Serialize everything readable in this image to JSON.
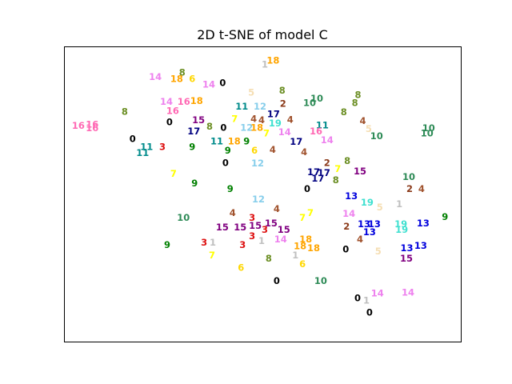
{
  "chart_data": {
    "type": "scatter",
    "title": "2D t-SNE of model C",
    "xlabel": "",
    "ylabel": "",
    "xlim": [
      0,
      1
    ],
    "ylim": [
      0,
      1
    ],
    "axis_ticks": "none",
    "grid": false,
    "legend": "none",
    "marker_style": "class label text",
    "label_colors": {
      "0": "#000000",
      "1": "#c0c0c0",
      "2": "#8b3a1a",
      "3": "#dd1111",
      "4": "#a0522d",
      "5": "#f5deb3",
      "6": "#ffd700",
      "7": "#ffff00",
      "8": "#6b8e23",
      "9": "#008000",
      "10": "#2e8b57",
      "11": "#008b8b",
      "12": "#87ceeb",
      "13": "#0000dd",
      "14": "#ee82ee",
      "15": "#800080",
      "16": "#ff69b4",
      "17": "#000080",
      "18": "#ffa500",
      "19": "#40e0d0"
    },
    "points": [
      {
        "label": "18",
        "x": 0.527,
        "y": 0.951
      },
      {
        "label": "1",
        "x": 0.506,
        "y": 0.938
      },
      {
        "label": "8",
        "x": 0.298,
        "y": 0.911
      },
      {
        "label": "14",
        "x": 0.23,
        "y": 0.895
      },
      {
        "label": "18",
        "x": 0.284,
        "y": 0.889
      },
      {
        "label": "6",
        "x": 0.323,
        "y": 0.889
      },
      {
        "label": "14",
        "x": 0.365,
        "y": 0.87
      },
      {
        "label": "0",
        "x": 0.4,
        "y": 0.876
      },
      {
        "label": "5",
        "x": 0.472,
        "y": 0.843
      },
      {
        "label": "8",
        "x": 0.55,
        "y": 0.849
      },
      {
        "label": "8",
        "x": 0.741,
        "y": 0.835
      },
      {
        "label": "10",
        "x": 0.637,
        "y": 0.822
      },
      {
        "label": "10",
        "x": 0.619,
        "y": 0.808
      },
      {
        "label": "14",
        "x": 0.258,
        "y": 0.811
      },
      {
        "label": "16",
        "x": 0.302,
        "y": 0.811
      },
      {
        "label": "18",
        "x": 0.334,
        "y": 0.814
      },
      {
        "label": "8",
        "x": 0.733,
        "y": 0.808
      },
      {
        "label": "2",
        "x": 0.552,
        "y": 0.805
      },
      {
        "label": "11",
        "x": 0.448,
        "y": 0.795
      },
      {
        "label": "12",
        "x": 0.494,
        "y": 0.795
      },
      {
        "label": "16",
        "x": 0.274,
        "y": 0.781
      },
      {
        "label": "8",
        "x": 0.705,
        "y": 0.776
      },
      {
        "label": "8",
        "x": 0.153,
        "y": 0.778
      },
      {
        "label": "17",
        "x": 0.528,
        "y": 0.77
      },
      {
        "label": "15",
        "x": 0.339,
        "y": 0.749
      },
      {
        "label": "4",
        "x": 0.478,
        "y": 0.754
      },
      {
        "label": "4",
        "x": 0.498,
        "y": 0.749
      },
      {
        "label": "7",
        "x": 0.43,
        "y": 0.754
      },
      {
        "label": "4",
        "x": 0.57,
        "y": 0.751
      },
      {
        "label": "4",
        "x": 0.753,
        "y": 0.746
      },
      {
        "label": "0",
        "x": 0.266,
        "y": 0.743
      },
      {
        "label": "19",
        "x": 0.532,
        "y": 0.738
      },
      {
        "label": "11",
        "x": 0.651,
        "y": 0.732
      },
      {
        "label": "16",
        "x": 0.071,
        "y": 0.735
      },
      {
        "label": "16",
        "x": 0.036,
        "y": 0.73
      },
      {
        "label": "16",
        "x": 0.071,
        "y": 0.722
      },
      {
        "label": "12",
        "x": 0.46,
        "y": 0.724
      },
      {
        "label": "18",
        "x": 0.486,
        "y": 0.724
      },
      {
        "label": "0",
        "x": 0.402,
        "y": 0.724
      },
      {
        "label": "8",
        "x": 0.367,
        "y": 0.727
      },
      {
        "label": "5",
        "x": 0.768,
        "y": 0.719
      },
      {
        "label": "10",
        "x": 0.919,
        "y": 0.722
      },
      {
        "label": "17",
        "x": 0.327,
        "y": 0.711
      },
      {
        "label": "7",
        "x": 0.51,
        "y": 0.705
      },
      {
        "label": "14",
        "x": 0.556,
        "y": 0.708
      },
      {
        "label": "16",
        "x": 0.635,
        "y": 0.711
      },
      {
        "label": "10",
        "x": 0.788,
        "y": 0.695
      },
      {
        "label": "10",
        "x": 0.915,
        "y": 0.705
      },
      {
        "label": "0",
        "x": 0.173,
        "y": 0.686
      },
      {
        "label": "11",
        "x": 0.385,
        "y": 0.678
      },
      {
        "label": "9",
        "x": 0.46,
        "y": 0.678
      },
      {
        "label": "18",
        "x": 0.429,
        "y": 0.678
      },
      {
        "label": "17",
        "x": 0.585,
        "y": 0.676
      },
      {
        "label": "14",
        "x": 0.663,
        "y": 0.681
      },
      {
        "label": "11",
        "x": 0.208,
        "y": 0.659
      },
      {
        "label": "3",
        "x": 0.248,
        "y": 0.659
      },
      {
        "label": "9",
        "x": 0.323,
        "y": 0.659
      },
      {
        "label": "11",
        "x": 0.198,
        "y": 0.638
      },
      {
        "label": "9",
        "x": 0.413,
        "y": 0.646
      },
      {
        "label": "6",
        "x": 0.48,
        "y": 0.646
      },
      {
        "label": "4",
        "x": 0.526,
        "y": 0.649
      },
      {
        "label": "4",
        "x": 0.605,
        "y": 0.641
      },
      {
        "label": "8",
        "x": 0.714,
        "y": 0.611
      },
      {
        "label": "2",
        "x": 0.663,
        "y": 0.605
      },
      {
        "label": "0",
        "x": 0.407,
        "y": 0.605
      },
      {
        "label": "12",
        "x": 0.488,
        "y": 0.603
      },
      {
        "label": "7",
        "x": 0.69,
        "y": 0.584
      },
      {
        "label": "15",
        "x": 0.746,
        "y": 0.576
      },
      {
        "label": "17",
        "x": 0.629,
        "y": 0.573
      },
      {
        "label": "17",
        "x": 0.655,
        "y": 0.57
      },
      {
        "label": "17",
        "x": 0.64,
        "y": 0.551
      },
      {
        "label": "8",
        "x": 0.685,
        "y": 0.546
      },
      {
        "label": "7",
        "x": 0.276,
        "y": 0.568
      },
      {
        "label": "10",
        "x": 0.869,
        "y": 0.557
      },
      {
        "label": "9",
        "x": 0.329,
        "y": 0.535
      },
      {
        "label": "0",
        "x": 0.613,
        "y": 0.516
      },
      {
        "label": "9",
        "x": 0.419,
        "y": 0.516
      },
      {
        "label": "2",
        "x": 0.871,
        "y": 0.516
      },
      {
        "label": "4",
        "x": 0.901,
        "y": 0.516
      },
      {
        "label": "13",
        "x": 0.724,
        "y": 0.492
      },
      {
        "label": "12",
        "x": 0.49,
        "y": 0.481
      },
      {
        "label": "19",
        "x": 0.764,
        "y": 0.47
      },
      {
        "label": "5",
        "x": 0.796,
        "y": 0.454
      },
      {
        "label": "1",
        "x": 0.845,
        "y": 0.465
      },
      {
        "label": "4",
        "x": 0.536,
        "y": 0.449
      },
      {
        "label": "4",
        "x": 0.425,
        "y": 0.435
      },
      {
        "label": "7",
        "x": 0.621,
        "y": 0.435
      },
      {
        "label": "7",
        "x": 0.601,
        "y": 0.419
      },
      {
        "label": "14",
        "x": 0.718,
        "y": 0.432
      },
      {
        "label": "9",
        "x": 0.96,
        "y": 0.422
      },
      {
        "label": "10",
        "x": 0.301,
        "y": 0.419
      },
      {
        "label": "3",
        "x": 0.474,
        "y": 0.419
      },
      {
        "label": "15",
        "x": 0.522,
        "y": 0.4
      },
      {
        "label": "13",
        "x": 0.756,
        "y": 0.397
      },
      {
        "label": "13",
        "x": 0.782,
        "y": 0.397
      },
      {
        "label": "19",
        "x": 0.849,
        "y": 0.397
      },
      {
        "label": "13",
        "x": 0.905,
        "y": 0.4
      },
      {
        "label": "2",
        "x": 0.712,
        "y": 0.389
      },
      {
        "label": "15",
        "x": 0.399,
        "y": 0.386
      },
      {
        "label": "15",
        "x": 0.444,
        "y": 0.386
      },
      {
        "label": "15",
        "x": 0.482,
        "y": 0.392
      },
      {
        "label": "3",
        "x": 0.506,
        "y": 0.378
      },
      {
        "label": "15",
        "x": 0.554,
        "y": 0.378
      },
      {
        "label": "19",
        "x": 0.851,
        "y": 0.378
      },
      {
        "label": "13",
        "x": 0.77,
        "y": 0.37
      },
      {
        "label": "3",
        "x": 0.474,
        "y": 0.357
      },
      {
        "label": "14",
        "x": 0.546,
        "y": 0.346
      },
      {
        "label": "1",
        "x": 0.498,
        "y": 0.34
      },
      {
        "label": "18",
        "x": 0.609,
        "y": 0.346
      },
      {
        "label": "4",
        "x": 0.746,
        "y": 0.346
      },
      {
        "label": "3",
        "x": 0.353,
        "y": 0.335
      },
      {
        "label": "1",
        "x": 0.375,
        "y": 0.335
      },
      {
        "label": "3",
        "x": 0.45,
        "y": 0.327
      },
      {
        "label": "18",
        "x": 0.595,
        "y": 0.322
      },
      {
        "label": "18",
        "x": 0.629,
        "y": 0.316
      },
      {
        "label": "0",
        "x": 0.71,
        "y": 0.311
      },
      {
        "label": "5",
        "x": 0.792,
        "y": 0.305
      },
      {
        "label": "13",
        "x": 0.864,
        "y": 0.316
      },
      {
        "label": "13",
        "x": 0.899,
        "y": 0.324
      },
      {
        "label": "15",
        "x": 0.863,
        "y": 0.281
      },
      {
        "label": "9",
        "x": 0.26,
        "y": 0.327
      },
      {
        "label": "7",
        "x": 0.373,
        "y": 0.292
      },
      {
        "label": "1",
        "x": 0.583,
        "y": 0.292
      },
      {
        "label": "8",
        "x": 0.516,
        "y": 0.281
      },
      {
        "label": "6",
        "x": 0.601,
        "y": 0.262
      },
      {
        "label": "6",
        "x": 0.446,
        "y": 0.249
      },
      {
        "label": "0",
        "x": 0.536,
        "y": 0.205
      },
      {
        "label": "10",
        "x": 0.647,
        "y": 0.205
      },
      {
        "label": "14",
        "x": 0.79,
        "y": 0.162
      },
      {
        "label": "14",
        "x": 0.867,
        "y": 0.165
      },
      {
        "label": "0",
        "x": 0.74,
        "y": 0.146
      },
      {
        "label": "1",
        "x": 0.762,
        "y": 0.138
      },
      {
        "label": "0",
        "x": 0.77,
        "y": 0.097
      }
    ]
  }
}
